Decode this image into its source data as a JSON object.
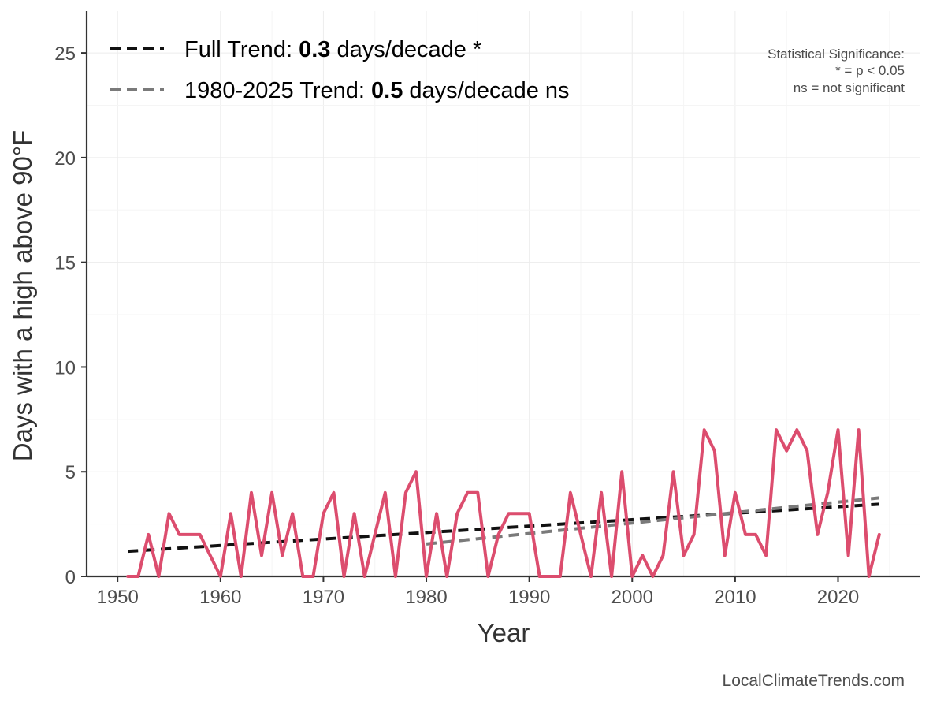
{
  "chart_data": {
    "type": "line",
    "xlabel": "Year",
    "ylabel": "Days with a high above 90°F",
    "xlim": [
      1947,
      2028
    ],
    "ylim": [
      0,
      27
    ],
    "x_ticks": [
      1950,
      1960,
      1970,
      1980,
      1990,
      2000,
      2010,
      2020
    ],
    "y_ticks": [
      0,
      5,
      10,
      15,
      20,
      25
    ],
    "grid": true,
    "series": [
      {
        "name": "Days with a high above 90°F",
        "color": "#DC4D6E",
        "x": [
          1951,
          1952,
          1953,
          1954,
          1955,
          1956,
          1957,
          1958,
          1959,
          1960,
          1961,
          1962,
          1963,
          1964,
          1965,
          1966,
          1967,
          1968,
          1969,
          1970,
          1971,
          1972,
          1973,
          1974,
          1975,
          1976,
          1977,
          1978,
          1979,
          1980,
          1981,
          1982,
          1983,
          1984,
          1985,
          1986,
          1987,
          1988,
          1989,
          1990,
          1991,
          1992,
          1993,
          1994,
          1995,
          1996,
          1997,
          1998,
          1999,
          2000,
          2001,
          2002,
          2003,
          2004,
          2005,
          2006,
          2007,
          2008,
          2009,
          2010,
          2011,
          2012,
          2013,
          2014,
          2015,
          2016,
          2017,
          2018,
          2019,
          2020,
          2021,
          2022,
          2023,
          2024
        ],
        "values": [
          0,
          0,
          2,
          0,
          3,
          2,
          2,
          2,
          1,
          0,
          3,
          0,
          4,
          1,
          4,
          1,
          3,
          0,
          0,
          3,
          4,
          0,
          3,
          0,
          2,
          4,
          0,
          4,
          5,
          0,
          3,
          0,
          3,
          4,
          4,
          0,
          2,
          3,
          3,
          3,
          0,
          0,
          0,
          4,
          2,
          0,
          4,
          0,
          5,
          0,
          1,
          0,
          1,
          5,
          1,
          2,
          7,
          6,
          1,
          4,
          2,
          2,
          1,
          7,
          6,
          7,
          6,
          2,
          4,
          7,
          1,
          7,
          0,
          2
        ]
      }
    ],
    "trends": [
      {
        "label_prefix": "Full Trend: ",
        "label_value": "0.3",
        "label_suffix": " days/decade *",
        "color": "#111111",
        "x": [
          1951,
          2024
        ],
        "y": [
          1.2,
          3.45
        ]
      },
      {
        "label_prefix": "1980-2025 Trend: ",
        "label_value": "0.5",
        "label_suffix": " days/decade ns",
        "color": "#7a7a7a",
        "x": [
          1980,
          2024
        ],
        "y": [
          1.55,
          3.75
        ]
      }
    ],
    "significance_note": [
      "Statistical Significance:",
      "* = p < 0.05",
      "ns = not significant"
    ],
    "source": "LocalClimateTrends.com"
  }
}
